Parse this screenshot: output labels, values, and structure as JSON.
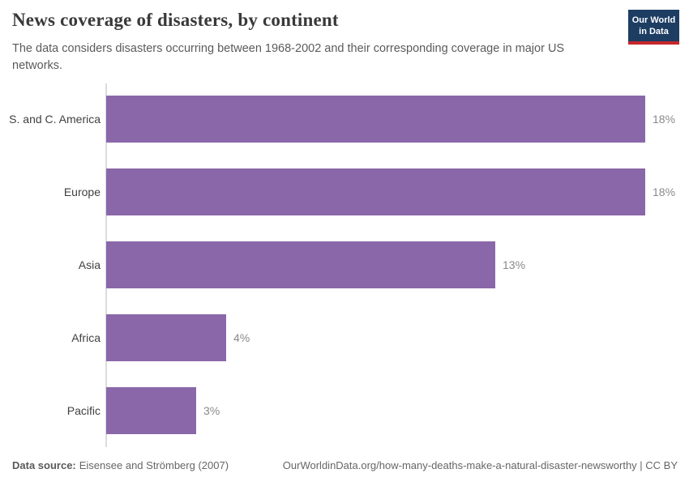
{
  "header": {
    "title": "News coverage of disasters, by continent",
    "subtitle": "The data considers disasters occurring between 1968-2002 and their corresponding coverage in major US networks.",
    "logo": {
      "line1": "Our World",
      "line2": "in Data"
    }
  },
  "chart_data": {
    "type": "bar",
    "orientation": "horizontal",
    "title": "News coverage of disasters, by continent",
    "categories": [
      "S. and C. America",
      "Europe",
      "Asia",
      "Africa",
      "Pacific"
    ],
    "values": [
      18,
      18,
      13,
      4,
      3
    ],
    "value_labels": [
      "18%",
      "18%",
      "13%",
      "4%",
      "3%"
    ],
    "unit": "%",
    "xlim": [
      0,
      18
    ],
    "grid": false,
    "bar_color": "#8a67a9",
    "axis_color": "#dcdcdc",
    "label_color": "#404040",
    "value_label_color": "#8a8a8a"
  },
  "footer": {
    "datasource_label": "Data source:",
    "datasource_value": "Eisensee and Strömberg (2007)",
    "attribution": "OurWorldinData.org/how-many-deaths-make-a-natural-disaster-newsworthy | CC BY"
  },
  "colors": {
    "bar": "#8a67a9",
    "logo_background": "#1d3d63",
    "logo_accent": "#c5262c",
    "title_text": "#393939",
    "subtitle_text": "#5b5b5b"
  }
}
